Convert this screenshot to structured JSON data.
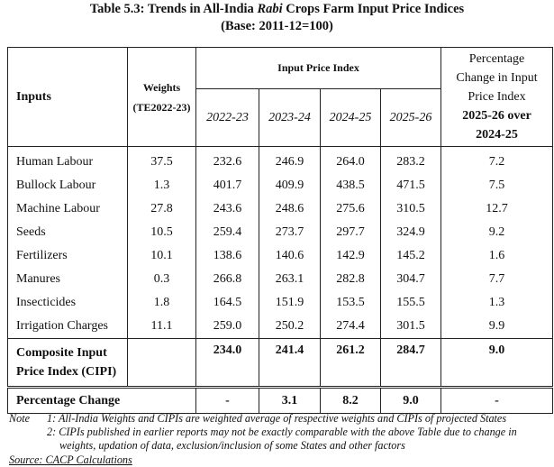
{
  "title": {
    "prefix": "Table 5.3: Trends in All-India ",
    "emph": "Rabi",
    "suffix": " Crops Farm Input Price Indices",
    "base": "(Base: 2011-12=100)"
  },
  "headers": {
    "inputs": "Inputs",
    "weights": "Weights",
    "weights_sub": "(TE2022-23)",
    "ipi": "Input Price Index",
    "years": [
      "2022-23",
      "2023-24",
      "2024-25",
      "2025-26"
    ],
    "pct_change": [
      "Percentage",
      "Change in Input",
      "Price Index",
      "2025-26 over",
      "2024-25"
    ]
  },
  "rows": [
    {
      "input": "Human Labour",
      "weight": "37.5",
      "v1": "232.6",
      "v2": "246.9",
      "v3": "264.0",
      "v4": "283.2",
      "pct": "7.2"
    },
    {
      "input": "Bullock Labour",
      "weight": "1.3",
      "v1": "401.7",
      "v2": "409.9",
      "v3": "438.5",
      "v4": "471.5",
      "pct": "7.5"
    },
    {
      "input": "Machine Labour",
      "weight": "27.8",
      "v1": "243.6",
      "v2": "248.6",
      "v3": "275.6",
      "v4": "310.5",
      "pct": "12.7"
    },
    {
      "input": "Seeds",
      "weight": "10.5",
      "v1": "259.4",
      "v2": "273.7",
      "v3": "297.7",
      "v4": "324.9",
      "pct": "9.2"
    },
    {
      "input": "Fertilizers",
      "weight": "10.1",
      "v1": "138.6",
      "v2": "140.6",
      "v3": "142.9",
      "v4": "145.2",
      "pct": "1.6"
    },
    {
      "input": "Manures",
      "weight": "0.3",
      "v1": "266.8",
      "v2": "263.1",
      "v3": "282.8",
      "v4": "304.7",
      "pct": "7.7"
    },
    {
      "input": "Insecticides",
      "weight": "1.8",
      "v1": "164.5",
      "v2": "151.9",
      "v3": "153.5",
      "v4": "155.5",
      "pct": "1.3"
    },
    {
      "input": "Irrigation Charges",
      "weight": "11.1",
      "v1": "259.0",
      "v2": "250.2",
      "v3": "274.4",
      "v4": "301.5",
      "pct": "9.9"
    }
  ],
  "composite": {
    "label": "Composite Input Price Index (CIPI)",
    "v1": "234.0",
    "v2": "241.4",
    "v3": "261.2",
    "v4": "284.7",
    "pct": "9.0"
  },
  "percentage_change": {
    "label": "Percentage Change",
    "v1": "-",
    "v2": "3.1",
    "v3": "8.2",
    "v4": "9.0",
    "pct": "-"
  },
  "notes": {
    "label": "Note",
    "n1": "1: All-India Weights and CIPIs are weighted average of respective weights and CIPIs of projected States",
    "n2": "2: CIPIs published in earlier reports may not be exactly comparable with the above Table due to change in weights, updation of data, exclusion/inclusion of some States and other factors"
  },
  "source": "Source: CACP Calculations"
}
